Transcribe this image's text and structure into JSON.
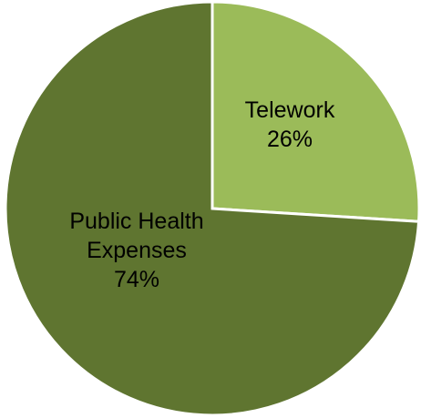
{
  "chart_data": {
    "type": "pie",
    "title": "",
    "slices": [
      {
        "label": "Telework",
        "value": 26,
        "value_label": "26%",
        "color": "#9BBB59"
      },
      {
        "label": "Public Health Expenses",
        "value": 74,
        "value_label": "74%",
        "color": "#5F7530"
      }
    ],
    "legend": "none",
    "slice_border_color": "#FFFFFF"
  }
}
